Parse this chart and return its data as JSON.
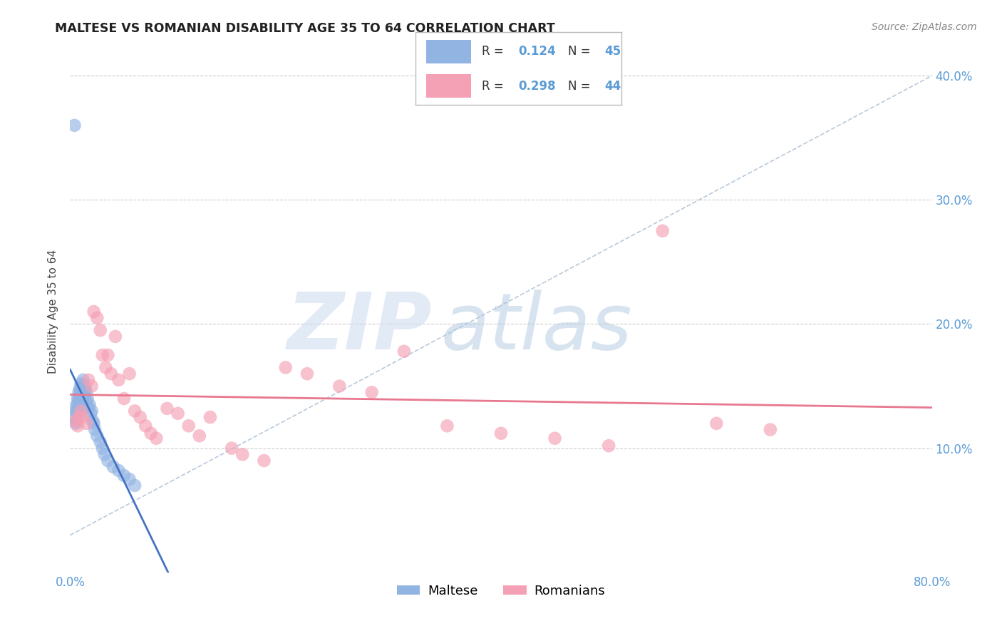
{
  "title": "MALTESE VS ROMANIAN DISABILITY AGE 35 TO 64 CORRELATION CHART",
  "source": "Source: ZipAtlas.com",
  "ylabel": "Disability Age 35 to 64",
  "xlim": [
    0.0,
    0.8
  ],
  "ylim": [
    0.0,
    0.42
  ],
  "xticks": [
    0.0,
    0.1,
    0.2,
    0.3,
    0.4,
    0.5,
    0.6,
    0.7,
    0.8
  ],
  "xticklabels": [
    "0.0%",
    "",
    "",
    "",
    "",
    "",
    "",
    "",
    "80.0%"
  ],
  "yticks": [
    0.0,
    0.1,
    0.2,
    0.3,
    0.4
  ],
  "yticklabels": [
    "",
    "10.0%",
    "20.0%",
    "30.0%",
    "40.0%"
  ],
  "maltese_color": "#92b4e3",
  "romanian_color": "#f4a0b5",
  "maltese_line_color": "#4472c4",
  "romanian_line_color": "#e87890",
  "dashed_line_color": "#b0c4d8",
  "maltese_R": 0.124,
  "maltese_N": 45,
  "romanian_R": 0.298,
  "romanian_N": 44,
  "background_color": "#ffffff",
  "maltese_x": [
    0.005,
    0.005,
    0.005,
    0.006,
    0.006,
    0.006,
    0.007,
    0.007,
    0.007,
    0.008,
    0.008,
    0.008,
    0.009,
    0.009,
    0.01,
    0.01,
    0.01,
    0.011,
    0.011,
    0.012,
    0.012,
    0.013,
    0.013,
    0.014,
    0.015,
    0.015,
    0.016,
    0.017,
    0.018,
    0.019,
    0.02,
    0.021,
    0.022,
    0.023,
    0.025,
    0.028,
    0.03,
    0.032,
    0.035,
    0.04,
    0.045,
    0.05,
    0.055,
    0.06,
    0.004
  ],
  "maltese_y": [
    0.13,
    0.125,
    0.12,
    0.135,
    0.13,
    0.122,
    0.14,
    0.135,
    0.128,
    0.145,
    0.14,
    0.132,
    0.148,
    0.143,
    0.152,
    0.147,
    0.14,
    0.15,
    0.145,
    0.155,
    0.148,
    0.15,
    0.143,
    0.148,
    0.145,
    0.138,
    0.14,
    0.133,
    0.135,
    0.128,
    0.13,
    0.122,
    0.12,
    0.115,
    0.11,
    0.105,
    0.1,
    0.095,
    0.09,
    0.085,
    0.082,
    0.078,
    0.075,
    0.07,
    0.36
  ],
  "romanian_x": [
    0.005,
    0.007,
    0.008,
    0.01,
    0.012,
    0.015,
    0.017,
    0.02,
    0.022,
    0.025,
    0.028,
    0.03,
    0.033,
    0.035,
    0.038,
    0.042,
    0.045,
    0.05,
    0.055,
    0.06,
    0.065,
    0.07,
    0.075,
    0.08,
    0.09,
    0.1,
    0.11,
    0.12,
    0.13,
    0.15,
    0.16,
    0.18,
    0.2,
    0.22,
    0.25,
    0.28,
    0.31,
    0.35,
    0.4,
    0.45,
    0.5,
    0.55,
    0.6,
    0.65
  ],
  "romanian_y": [
    0.122,
    0.118,
    0.125,
    0.13,
    0.125,
    0.12,
    0.155,
    0.15,
    0.21,
    0.205,
    0.195,
    0.175,
    0.165,
    0.175,
    0.16,
    0.19,
    0.155,
    0.14,
    0.16,
    0.13,
    0.125,
    0.118,
    0.112,
    0.108,
    0.132,
    0.128,
    0.118,
    0.11,
    0.125,
    0.1,
    0.095,
    0.09,
    0.165,
    0.16,
    0.15,
    0.145,
    0.178,
    0.118,
    0.112,
    0.108,
    0.102,
    0.275,
    0.12,
    0.115
  ]
}
